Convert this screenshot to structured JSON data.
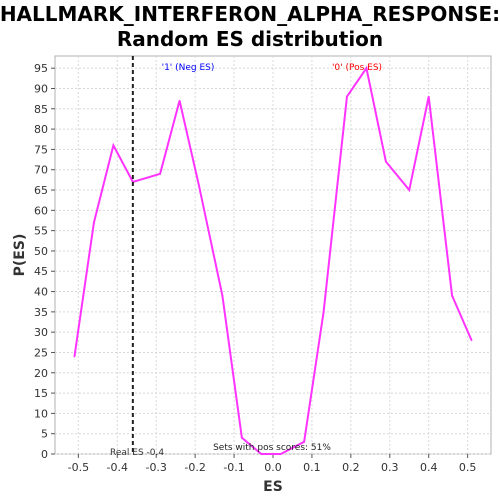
{
  "chart_data": {
    "type": "line",
    "title_line1": "HALLMARK_INTERFERON_ALPHA_RESPONSE:",
    "title_line2": "Random ES distribution",
    "xlabel": "ES",
    "ylabel": "P(ES)",
    "xlim": [
      -0.56,
      0.56
    ],
    "ylim": [
      0,
      98
    ],
    "x_ticks": [
      "-0.5",
      "-0.4",
      "-0.3",
      "-0.2",
      "-0.1",
      "0.0",
      "0.1",
      "0.2",
      "0.3",
      "0.4",
      "0.5"
    ],
    "y_ticks": [
      "0",
      "5",
      "10",
      "15",
      "20",
      "25",
      "30",
      "35",
      "40",
      "45",
      "50",
      "55",
      "60",
      "65",
      "70",
      "75",
      "80",
      "85",
      "90",
      "95"
    ],
    "grid": true,
    "series": [
      {
        "color": "#ff33ff",
        "x": [
          -0.51,
          -0.46,
          -0.41,
          -0.36,
          -0.29,
          -0.24,
          -0.19,
          -0.13,
          -0.08,
          -0.03,
          0.02,
          0.08,
          0.13,
          0.19,
          0.24,
          0.29,
          0.35,
          0.4,
          0.46,
          0.51
        ],
        "y": [
          24,
          57,
          76,
          67,
          69,
          87,
          66,
          39,
          4,
          0,
          0,
          3,
          35,
          88,
          95,
          72,
          65,
          88,
          39,
          28
        ]
      }
    ],
    "real_es": -0.36,
    "annotations": {
      "neg_label": "'1' (Neg ES)",
      "pos_label": "'0' (Pos ES)",
      "neg_color": "#0000ff",
      "pos_color": "#ff0000",
      "real_es_label": "Real ES -0.4",
      "pos_scores_text": "Sets with pos scores: 51%"
    }
  }
}
